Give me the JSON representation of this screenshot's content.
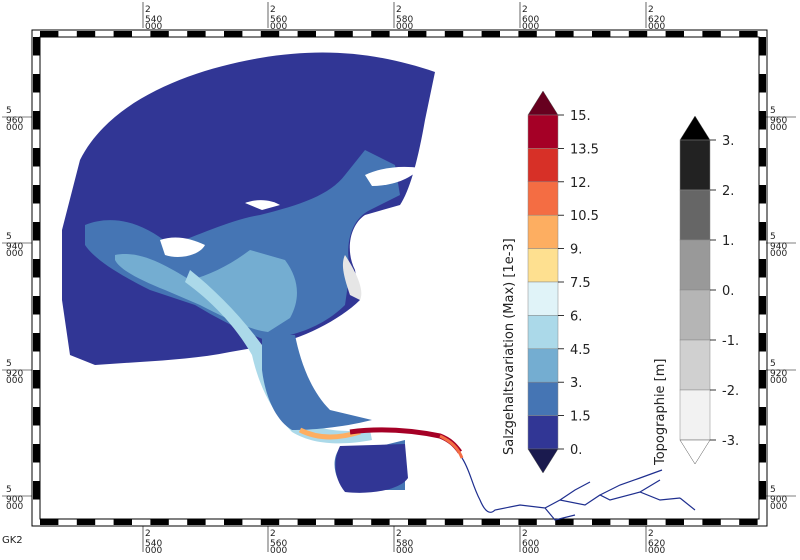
{
  "map": {
    "grid_label": "GK2",
    "easting_ticks": [
      {
        "top": "2",
        "bottom": "540",
        "sub": "000"
      },
      {
        "top": "2",
        "bottom": "560",
        "sub": "000"
      },
      {
        "top": "2",
        "bottom": "580",
        "sub": "000"
      },
      {
        "top": "2",
        "bottom": "600",
        "sub": "000"
      },
      {
        "top": "2",
        "bottom": "620",
        "sub": "000"
      }
    ],
    "northing_ticks": [
      {
        "top": "5",
        "bottom": "960",
        "sub": "000"
      },
      {
        "top": "5",
        "bottom": "940",
        "sub": "000"
      },
      {
        "top": "5",
        "bottom": "920",
        "sub": "000"
      },
      {
        "top": "5",
        "bottom": "900",
        "sub": "000"
      }
    ]
  },
  "salinity_legend": {
    "title": "Salzgehaltsvariation (Max) [1e-3]",
    "labels": [
      "15.",
      "13.5",
      "12.",
      "10.5",
      "9.",
      "7.5",
      "6.",
      "4.5",
      "3.",
      "1.5",
      "0."
    ],
    "colors": [
      "#a50026",
      "#d73027",
      "#f46d43",
      "#fdae61",
      "#fee090",
      "#e0f3f8",
      "#abd9e9",
      "#74add1",
      "#4575b4",
      "#313695"
    ],
    "overflow_top_color": "#67001f",
    "overflow_bottom_color": "#1a1a4e"
  },
  "topography_legend": {
    "title": "Topographie [m]",
    "labels": [
      "3.",
      "2.",
      "1.",
      "0.",
      "-1.",
      "-2.",
      "-3."
    ],
    "colors": [
      "#222222",
      "#666666",
      "#999999",
      "#b5b5b5",
      "#d0d0d0",
      "#f2f2f2"
    ],
    "overflow_top_color": "#000000",
    "overflow_bottom_color": "#ffffff"
  }
}
